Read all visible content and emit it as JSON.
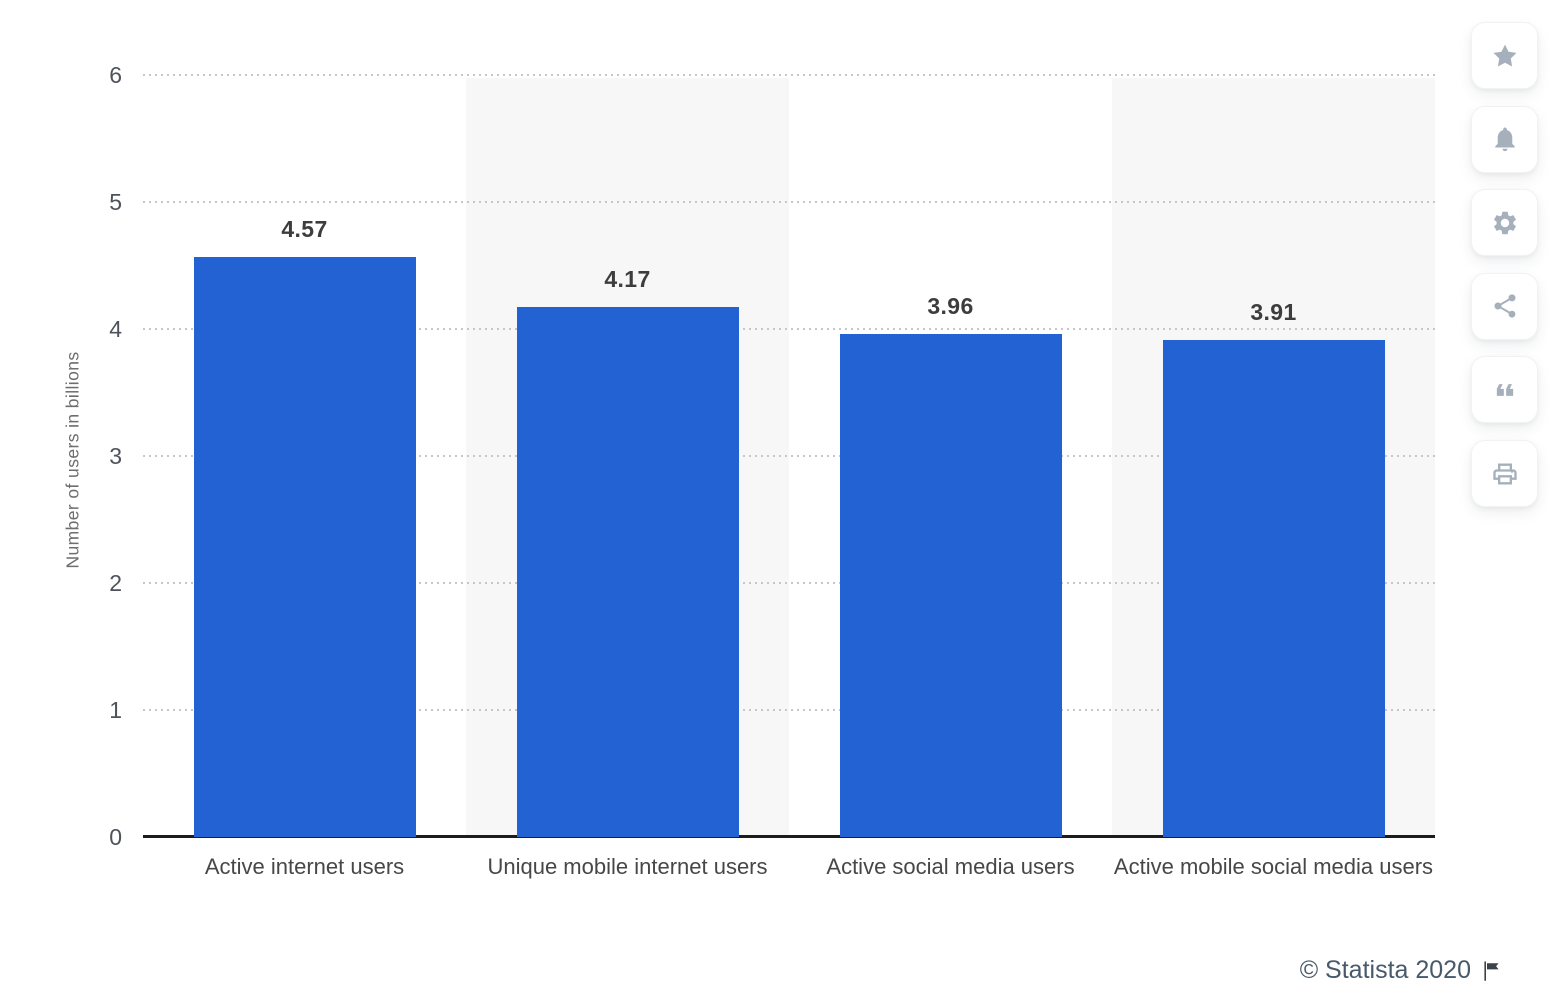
{
  "chart_data": {
    "type": "bar",
    "categories": [
      "Active internet users",
      "Unique mobile internet users",
      "Active social media users",
      "Active mobile social media users"
    ],
    "values": [
      4.57,
      4.17,
      3.96,
      3.91
    ],
    "value_labels": [
      "4.57",
      "4.17",
      "3.96",
      "3.91"
    ],
    "title": "",
    "xlabel": "",
    "ylabel": "Number of users in billions",
    "ylim": [
      0,
      6
    ],
    "yticks": [
      0,
      1,
      2,
      3,
      4,
      5,
      6
    ],
    "grid": "horizontal-dotted",
    "legend": "none",
    "bar_color": "#2262d3",
    "band_color": "#f7f7f8",
    "alternating_bands": [
      1,
      3
    ]
  },
  "toolbar": {
    "buttons": [
      {
        "name": "favorite",
        "icon": "star-icon"
      },
      {
        "name": "notifications",
        "icon": "bell-icon"
      },
      {
        "name": "settings",
        "icon": "gear-icon"
      },
      {
        "name": "share",
        "icon": "share-icon"
      },
      {
        "name": "cite",
        "icon": "quote-icon"
      },
      {
        "name": "print",
        "icon": "printer-icon"
      }
    ]
  },
  "footer": {
    "copyright": "© Statista 2020",
    "flag_icon": "flag-icon"
  }
}
